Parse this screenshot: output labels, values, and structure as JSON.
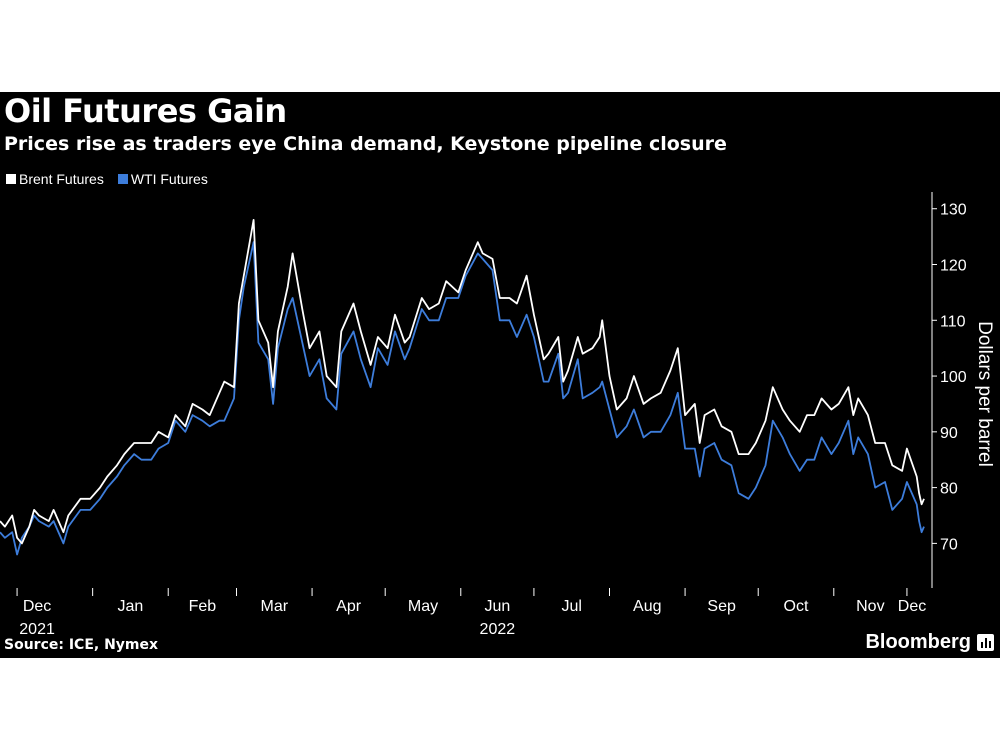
{
  "title": "Oil Futures Gain",
  "subtitle": "Prices rise as traders eye China demand, Keystone pipeline closure",
  "source": "Source: ICE, Nymex",
  "brand": "Bloomberg",
  "brand_icon": "bloomberg-bars-icon",
  "colors": {
    "background": "#000000",
    "brent": "#ffffff",
    "wti": "#3d7ddb",
    "text": "#ffffff"
  },
  "chart_data": {
    "type": "line",
    "ylabel": "Dollars per barrel",
    "ylim": [
      62,
      133
    ],
    "yticks": [
      70,
      80,
      90,
      100,
      110,
      120,
      130
    ],
    "y_axis_position": "right",
    "legend": "top-left",
    "grid": false,
    "month_labels": [
      {
        "label": "Dec",
        "date": "2021-12-01"
      },
      {
        "label": "Jan",
        "date": "2022-01-01"
      },
      {
        "label": "Feb",
        "date": "2022-02-01"
      },
      {
        "label": "Mar",
        "date": "2022-03-01"
      },
      {
        "label": "Apr",
        "date": "2022-04-01"
      },
      {
        "label": "May",
        "date": "2022-05-01"
      },
      {
        "label": "Jun",
        "date": "2022-06-01"
      },
      {
        "label": "Jul",
        "date": "2022-07-01"
      },
      {
        "label": "Aug",
        "date": "2022-08-01"
      },
      {
        "label": "Sep",
        "date": "2022-09-01"
      },
      {
        "label": "Oct",
        "date": "2022-10-01"
      },
      {
        "label": "Nov",
        "date": "2022-11-01"
      },
      {
        "label": "Dec",
        "date": "2022-12-01"
      }
    ],
    "year_labels": [
      {
        "label": "2021",
        "date": "2021-12-01"
      },
      {
        "label": "2022",
        "date": "2022-06-01"
      }
    ],
    "x_range": [
      "2021-11-24",
      "2022-12-08"
    ],
    "series": [
      {
        "name": "Brent Futures",
        "color": "#ffffff",
        "points": [
          [
            "2021-11-24",
            74
          ],
          [
            "2021-11-26",
            73
          ],
          [
            "2021-11-29",
            75
          ],
          [
            "2021-12-01",
            71
          ],
          [
            "2021-12-03",
            70
          ],
          [
            "2021-12-06",
            73
          ],
          [
            "2021-12-08",
            76
          ],
          [
            "2021-12-10",
            75
          ],
          [
            "2021-12-14",
            74
          ],
          [
            "2021-12-16",
            76
          ],
          [
            "2021-12-20",
            72
          ],
          [
            "2021-12-22",
            75
          ],
          [
            "2021-12-27",
            78
          ],
          [
            "2021-12-31",
            78
          ],
          [
            "2022-01-04",
            80
          ],
          [
            "2022-01-07",
            82
          ],
          [
            "2022-01-11",
            84
          ],
          [
            "2022-01-14",
            86
          ],
          [
            "2022-01-18",
            88
          ],
          [
            "2022-01-21",
            88
          ],
          [
            "2022-01-25",
            88
          ],
          [
            "2022-01-28",
            90
          ],
          [
            "2022-02-01",
            89
          ],
          [
            "2022-02-04",
            93
          ],
          [
            "2022-02-08",
            91
          ],
          [
            "2022-02-11",
            95
          ],
          [
            "2022-02-15",
            94
          ],
          [
            "2022-02-18",
            93
          ],
          [
            "2022-02-22",
            97
          ],
          [
            "2022-02-24",
            99
          ],
          [
            "2022-02-28",
            98
          ],
          [
            "2022-03-02",
            113
          ],
          [
            "2022-03-04",
            118
          ],
          [
            "2022-03-08",
            128
          ],
          [
            "2022-03-10",
            110
          ],
          [
            "2022-03-14",
            106
          ],
          [
            "2022-03-16",
            98
          ],
          [
            "2022-03-18",
            108
          ],
          [
            "2022-03-22",
            116
          ],
          [
            "2022-03-24",
            122
          ],
          [
            "2022-03-28",
            112
          ],
          [
            "2022-03-31",
            105
          ],
          [
            "2022-04-04",
            108
          ],
          [
            "2022-04-07",
            100
          ],
          [
            "2022-04-11",
            98
          ],
          [
            "2022-04-13",
            108
          ],
          [
            "2022-04-18",
            113
          ],
          [
            "2022-04-21",
            108
          ],
          [
            "2022-04-25",
            102
          ],
          [
            "2022-04-28",
            107
          ],
          [
            "2022-05-02",
            105
          ],
          [
            "2022-05-05",
            111
          ],
          [
            "2022-05-09",
            106
          ],
          [
            "2022-05-11",
            107
          ],
          [
            "2022-05-16",
            114
          ],
          [
            "2022-05-19",
            112
          ],
          [
            "2022-05-23",
            113
          ],
          [
            "2022-05-26",
            117
          ],
          [
            "2022-05-31",
            115
          ],
          [
            "2022-06-03",
            119
          ],
          [
            "2022-06-08",
            124
          ],
          [
            "2022-06-10",
            122
          ],
          [
            "2022-06-14",
            121
          ],
          [
            "2022-06-17",
            114
          ],
          [
            "2022-06-21",
            114
          ],
          [
            "2022-06-24",
            113
          ],
          [
            "2022-06-28",
            118
          ],
          [
            "2022-07-01",
            111
          ],
          [
            "2022-07-05",
            103
          ],
          [
            "2022-07-07",
            104
          ],
          [
            "2022-07-11",
            107
          ],
          [
            "2022-07-13",
            99
          ],
          [
            "2022-07-15",
            101
          ],
          [
            "2022-07-19",
            107
          ],
          [
            "2022-07-21",
            104
          ],
          [
            "2022-07-25",
            105
          ],
          [
            "2022-07-28",
            107
          ],
          [
            "2022-07-29",
            110
          ],
          [
            "2022-08-01",
            100
          ],
          [
            "2022-08-04",
            94
          ],
          [
            "2022-08-08",
            96
          ],
          [
            "2022-08-11",
            100
          ],
          [
            "2022-08-15",
            95
          ],
          [
            "2022-08-18",
            96
          ],
          [
            "2022-08-22",
            97
          ],
          [
            "2022-08-26",
            101
          ],
          [
            "2022-08-29",
            105
          ],
          [
            "2022-09-01",
            93
          ],
          [
            "2022-09-05",
            95
          ],
          [
            "2022-09-07",
            88
          ],
          [
            "2022-09-09",
            93
          ],
          [
            "2022-09-13",
            94
          ],
          [
            "2022-09-16",
            91
          ],
          [
            "2022-09-20",
            90
          ],
          [
            "2022-09-23",
            86
          ],
          [
            "2022-09-27",
            86
          ],
          [
            "2022-09-30",
            88
          ],
          [
            "2022-10-04",
            92
          ],
          [
            "2022-10-07",
            98
          ],
          [
            "2022-10-11",
            94
          ],
          [
            "2022-10-14",
            92
          ],
          [
            "2022-10-18",
            90
          ],
          [
            "2022-10-21",
            93
          ],
          [
            "2022-10-24",
            93
          ],
          [
            "2022-10-27",
            96
          ],
          [
            "2022-10-31",
            94
          ],
          [
            "2022-11-03",
            95
          ],
          [
            "2022-11-07",
            98
          ],
          [
            "2022-11-09",
            93
          ],
          [
            "2022-11-11",
            96
          ],
          [
            "2022-11-15",
            93
          ],
          [
            "2022-11-18",
            88
          ],
          [
            "2022-11-22",
            88
          ],
          [
            "2022-11-25",
            84
          ],
          [
            "2022-11-29",
            83
          ],
          [
            "2022-12-01",
            87
          ],
          [
            "2022-12-05",
            82
          ],
          [
            "2022-12-06",
            79
          ],
          [
            "2022-12-07",
            77
          ],
          [
            "2022-12-08",
            78
          ]
        ]
      },
      {
        "name": "WTI Futures",
        "color": "#3d7ddb",
        "points": [
          [
            "2021-11-24",
            72
          ],
          [
            "2021-11-26",
            71
          ],
          [
            "2021-11-29",
            72
          ],
          [
            "2021-12-01",
            68
          ],
          [
            "2021-12-03",
            71
          ],
          [
            "2021-12-06",
            73
          ],
          [
            "2021-12-08",
            75
          ],
          [
            "2021-12-10",
            74
          ],
          [
            "2021-12-14",
            73
          ],
          [
            "2021-12-16",
            74
          ],
          [
            "2021-12-20",
            70
          ],
          [
            "2021-12-22",
            73
          ],
          [
            "2021-12-27",
            76
          ],
          [
            "2021-12-31",
            76
          ],
          [
            "2022-01-04",
            78
          ],
          [
            "2022-01-07",
            80
          ],
          [
            "2022-01-11",
            82
          ],
          [
            "2022-01-14",
            84
          ],
          [
            "2022-01-18",
            86
          ],
          [
            "2022-01-21",
            85
          ],
          [
            "2022-01-25",
            85
          ],
          [
            "2022-01-28",
            87
          ],
          [
            "2022-02-01",
            88
          ],
          [
            "2022-02-04",
            92
          ],
          [
            "2022-02-08",
            90
          ],
          [
            "2022-02-11",
            93
          ],
          [
            "2022-02-15",
            92
          ],
          [
            "2022-02-18",
            91
          ],
          [
            "2022-02-22",
            92
          ],
          [
            "2022-02-24",
            92
          ],
          [
            "2022-02-28",
            96
          ],
          [
            "2022-03-02",
            110
          ],
          [
            "2022-03-04",
            116
          ],
          [
            "2022-03-08",
            124
          ],
          [
            "2022-03-10",
            106
          ],
          [
            "2022-03-14",
            103
          ],
          [
            "2022-03-16",
            95
          ],
          [
            "2022-03-18",
            105
          ],
          [
            "2022-03-22",
            112
          ],
          [
            "2022-03-24",
            114
          ],
          [
            "2022-03-28",
            106
          ],
          [
            "2022-03-31",
            100
          ],
          [
            "2022-04-04",
            103
          ],
          [
            "2022-04-07",
            96
          ],
          [
            "2022-04-11",
            94
          ],
          [
            "2022-04-13",
            104
          ],
          [
            "2022-04-18",
            108
          ],
          [
            "2022-04-21",
            103
          ],
          [
            "2022-04-25",
            98
          ],
          [
            "2022-04-28",
            105
          ],
          [
            "2022-05-02",
            102
          ],
          [
            "2022-05-05",
            108
          ],
          [
            "2022-05-09",
            103
          ],
          [
            "2022-05-11",
            105
          ],
          [
            "2022-05-16",
            112
          ],
          [
            "2022-05-19",
            110
          ],
          [
            "2022-05-23",
            110
          ],
          [
            "2022-05-26",
            114
          ],
          [
            "2022-05-31",
            114
          ],
          [
            "2022-06-03",
            118
          ],
          [
            "2022-06-08",
            122
          ],
          [
            "2022-06-10",
            121
          ],
          [
            "2022-06-14",
            119
          ],
          [
            "2022-06-17",
            110
          ],
          [
            "2022-06-21",
            110
          ],
          [
            "2022-06-24",
            107
          ],
          [
            "2022-06-28",
            111
          ],
          [
            "2022-07-01",
            107
          ],
          [
            "2022-07-05",
            99
          ],
          [
            "2022-07-07",
            99
          ],
          [
            "2022-07-11",
            104
          ],
          [
            "2022-07-13",
            96
          ],
          [
            "2022-07-15",
            97
          ],
          [
            "2022-07-19",
            103
          ],
          [
            "2022-07-21",
            96
          ],
          [
            "2022-07-25",
            97
          ],
          [
            "2022-07-28",
            98
          ],
          [
            "2022-07-29",
            99
          ],
          [
            "2022-08-01",
            94
          ],
          [
            "2022-08-04",
            89
          ],
          [
            "2022-08-08",
            91
          ],
          [
            "2022-08-11",
            94
          ],
          [
            "2022-08-15",
            89
          ],
          [
            "2022-08-18",
            90
          ],
          [
            "2022-08-22",
            90
          ],
          [
            "2022-08-26",
            93
          ],
          [
            "2022-08-29",
            97
          ],
          [
            "2022-09-01",
            87
          ],
          [
            "2022-09-05",
            87
          ],
          [
            "2022-09-07",
            82
          ],
          [
            "2022-09-09",
            87
          ],
          [
            "2022-09-13",
            88
          ],
          [
            "2022-09-16",
            85
          ],
          [
            "2022-09-20",
            84
          ],
          [
            "2022-09-23",
            79
          ],
          [
            "2022-09-27",
            78
          ],
          [
            "2022-09-30",
            80
          ],
          [
            "2022-10-04",
            84
          ],
          [
            "2022-10-07",
            92
          ],
          [
            "2022-10-11",
            89
          ],
          [
            "2022-10-14",
            86
          ],
          [
            "2022-10-18",
            83
          ],
          [
            "2022-10-21",
            85
          ],
          [
            "2022-10-24",
            85
          ],
          [
            "2022-10-27",
            89
          ],
          [
            "2022-10-31",
            86
          ],
          [
            "2022-11-03",
            88
          ],
          [
            "2022-11-07",
            92
          ],
          [
            "2022-11-09",
            86
          ],
          [
            "2022-11-11",
            89
          ],
          [
            "2022-11-15",
            86
          ],
          [
            "2022-11-18",
            80
          ],
          [
            "2022-11-22",
            81
          ],
          [
            "2022-11-25",
            76
          ],
          [
            "2022-11-29",
            78
          ],
          [
            "2022-12-01",
            81
          ],
          [
            "2022-12-05",
            77
          ],
          [
            "2022-12-06",
            74
          ],
          [
            "2022-12-07",
            72
          ],
          [
            "2022-12-08",
            73
          ]
        ]
      }
    ]
  }
}
